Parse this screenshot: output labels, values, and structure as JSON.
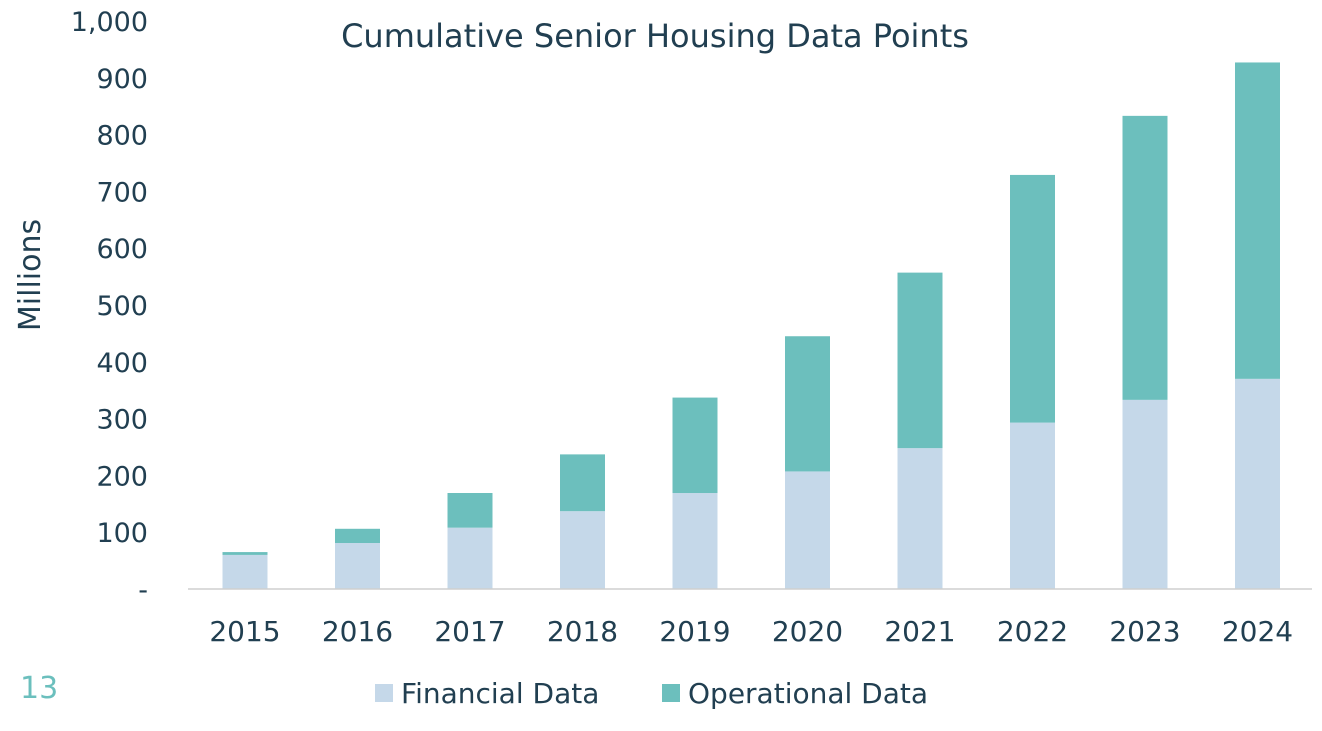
{
  "page_number": "13",
  "colors": {
    "financial": "#c5d8e9",
    "operational": "#6cbfbd",
    "text": "#213f51",
    "axis": "#cfcfcf",
    "page_number": "#6bbfbd"
  },
  "chart_data": {
    "type": "bar",
    "stacked": true,
    "title": "Cumulative Senior Housing Data Points",
    "xlabel": "",
    "ylabel": "Millions",
    "ylim": [
      0,
      1000
    ],
    "yticks": [
      0,
      100,
      200,
      300,
      400,
      500,
      600,
      700,
      800,
      900,
      1000
    ],
    "ytick_labels": [
      "-",
      "100",
      "200",
      "300",
      "400",
      "500",
      "600",
      "700",
      "800",
      "900",
      "1,000"
    ],
    "categories": [
      "2015",
      "2016",
      "2017",
      "2018",
      "2019",
      "2020",
      "2021",
      "2022",
      "2023",
      "2024"
    ],
    "series": [
      {
        "name": "Financial Data",
        "color": "#c5d8e9",
        "values": [
          60,
          81,
          108,
          137,
          169,
          207,
          248,
          293,
          333,
          370
        ]
      },
      {
        "name": "Operational Data",
        "color": "#6cbfbd",
        "values": [
          5,
          25,
          61,
          100,
          168,
          238,
          309,
          436,
          500,
          557
        ]
      }
    ],
    "grid": false,
    "legend": "bottom-center"
  }
}
